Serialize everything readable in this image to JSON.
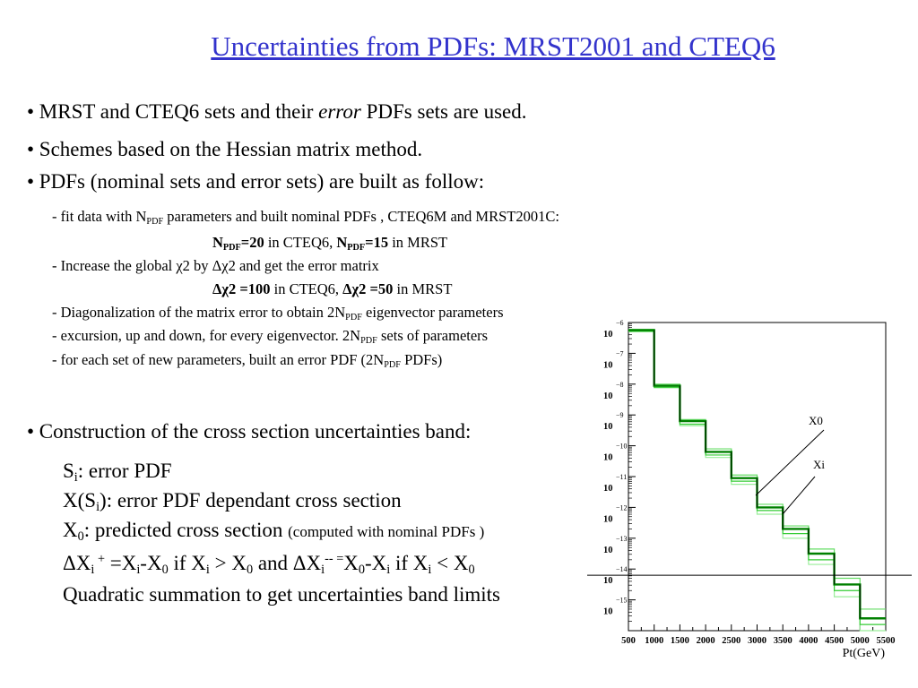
{
  "title": "Uncertainties from PDFs: MRST2001 and CTEQ6",
  "bullets": {
    "b1_a": "• MRST and CTEQ6 sets and their ",
    "b1_em": "error",
    "b1_b": " PDFs sets are used.",
    "b2": "• Schemes based on the Hessian matrix method.",
    "b3": "• PDFs (nominal sets and error sets) are built as follow:",
    "b4": "• Construction of the cross section uncertainties band:"
  },
  "steps": {
    "s1_a": "- fit data with N",
    "s1_sub": "PDF",
    "s1_b": " parameters and built nominal PDFs , CTEQ6M and MRST2001C:",
    "s1c_n1": "N",
    "s1c_sub1": "PDF",
    "s1c_v1": "=20",
    "s1c_t1": " in CTEQ6, ",
    "s1c_n2": "N",
    "s1c_sub2": "PDF",
    "s1c_v2": "=15",
    "s1c_t2": " in MRST",
    "s2": "- Increase the global χ2 by  Δχ2 and get the error matrix",
    "s2c_b1": "Δχ2 =100",
    "s2c_t1": " in CTEQ6, ",
    "s2c_b2": "Δχ2 =50",
    "s2c_t2": " in MRST",
    "s3_a": "- Diagonalization of the matrix error to obtain 2N",
    "s3_sub": "PDF",
    "s3_b": " eigenvector parameters",
    "s4_a": "- excursion, up and down, for every eigenvector. 2N",
    "s4_sub": "PDF",
    "s4_b": " sets of parameters",
    "s5_a": "- for each set of new parameters, built an error PDF (2N",
    "s5_sub": "PDF",
    "s5_b": " PDFs)"
  },
  "band": {
    "l1_a": "S",
    "l1_sub": "i",
    "l1_b": ": error PDF",
    "l2_a": "X(S",
    "l2_sub": "i",
    "l2_b": "): error PDF dependant cross section",
    "l3_a": "X",
    "l3_sub": "0",
    "l3_b": ":  predicted cross section ",
    "l3_small": "(computed with nominal PDFs )",
    "l4_p1": "ΔX",
    "l4_s1": "i",
    "l4_sup1": " +",
    "l4_p2": " =X",
    "l4_s2": "i",
    "l4_p3": "-X",
    "l4_s3": "0",
    "l4_p4": " if    X",
    "l4_s4": "i",
    "l4_p5": " > X",
    "l4_s5": "0",
    "l4_p6": " and ΔX",
    "l4_s6": "i",
    "l4_sup2": "-- =",
    "l4_p7": "X",
    "l4_s7": "0",
    "l4_p8": "-X",
    "l4_s8": "i",
    "l4_p9": " if    X",
    "l4_s9": "i",
    "l4_p10": " < X",
    "l4_s10": "0",
    "l5": "Quadratic summation to get uncertainties band limits"
  },
  "chart_data": {
    "type": "line",
    "title": "",
    "xlabel": "Pt(GeV)",
    "ylabel": "",
    "xlim": [
      500,
      5500
    ],
    "ylim_exponent": [
      -16,
      -6
    ],
    "log_y": true,
    "grid": false,
    "x_ticks": [
      500,
      1000,
      1500,
      2000,
      2500,
      3000,
      3500,
      4000,
      4500,
      5000,
      5500
    ],
    "y_tick_base": "10",
    "y_tick_exponents": [
      "-6",
      "-7",
      "-8",
      "-9",
      "-10",
      "-11",
      "-12",
      "-13",
      "-14",
      "-15"
    ],
    "bins_x": [
      500,
      1000,
      1500,
      2000,
      2500,
      3000,
      3500,
      4000,
      4500,
      5000
    ],
    "series": [
      {
        "name": "X0",
        "color": "#008000",
        "log10_values": [
          -6.25,
          -8.05,
          -9.2,
          -10.2,
          -11.05,
          -12.0,
          -12.7,
          -13.5,
          -14.5,
          -15.6
        ]
      },
      {
        "name": "Xi",
        "color": "#33cc33",
        "log10_values": [
          -6.28,
          -8.1,
          -9.3,
          -10.3,
          -11.15,
          -12.1,
          -12.85,
          -13.7,
          -14.7,
          -15.8
        ]
      },
      {
        "name": "",
        "color": "#66dd66",
        "log10_values": [
          -6.22,
          -8.0,
          -9.15,
          -10.1,
          -10.95,
          -11.9,
          -12.6,
          -13.35,
          -14.3,
          -15.3
        ]
      },
      {
        "name": "",
        "color": "#99ee99",
        "log10_values": [
          -6.3,
          -8.12,
          -9.35,
          -10.38,
          -11.25,
          -12.22,
          -13.0,
          -13.85,
          -14.9,
          -16.0
        ]
      }
    ],
    "annotations": [
      "X0",
      "Xi"
    ],
    "reference_log10": -14.2
  }
}
